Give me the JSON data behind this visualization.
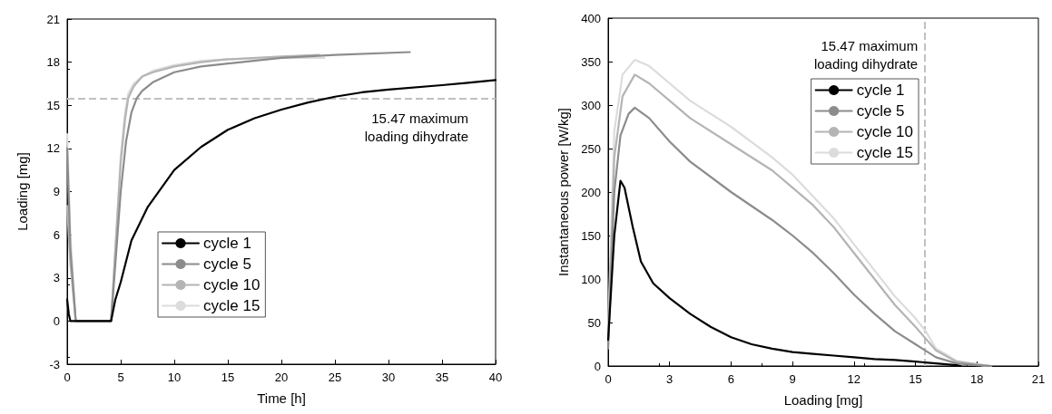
{
  "chart_data": [
    {
      "type": "line",
      "xlabel": "Time [h]",
      "ylabel": "Loading [mg]",
      "xlim": [
        0,
        40
      ],
      "ylim": [
        -3,
        21
      ],
      "xticks": [
        0,
        5,
        10,
        15,
        20,
        25,
        30,
        35,
        40
      ],
      "yticks": [
        -3,
        0,
        3,
        6,
        9,
        12,
        15,
        18,
        21
      ],
      "legend": "bottom",
      "ref_lines": [
        {
          "axis": "y",
          "value": 15.47,
          "color": "#c0c0c0",
          "line_style": "dashed",
          "label": "15.47 maximum\nloading dihydrate"
        }
      ],
      "series": [
        {
          "name": "cycle 1",
          "color": "#000000",
          "x": [
            0,
            0.15,
            0.3,
            1,
            2,
            3,
            4,
            4.1,
            4.5,
            5,
            6,
            7.5,
            10,
            12.5,
            15,
            17.5,
            20,
            22.5,
            25,
            27.5,
            30,
            35,
            40
          ],
          "values": [
            1.5,
            0.5,
            0,
            0,
            0,
            0,
            0,
            0,
            1.5,
            2.7,
            5.6,
            7.9,
            10.5,
            12.1,
            13.3,
            14.1,
            14.7,
            15.2,
            15.6,
            15.9,
            16.1,
            16.4,
            16.75
          ]
        },
        {
          "name": "cycle 5",
          "color": "#8c8c8c",
          "x": [
            0,
            0.3,
            0.8,
            2,
            4,
            4.1,
            4.5,
            5,
            5.5,
            6,
            6.5,
            7,
            8,
            10,
            12.5,
            15,
            20,
            25,
            32
          ],
          "values": [
            12,
            5,
            0,
            0,
            0,
            0,
            4,
            9,
            12.5,
            14.5,
            15.5,
            16,
            16.6,
            17.3,
            17.7,
            17.9,
            18.3,
            18.5,
            18.7
          ]
        },
        {
          "name": "cycle 10",
          "color": "#b4b4b4",
          "x": [
            0,
            0.3,
            0.8,
            2,
            4,
            4.1,
            4.5,
            5,
            5.4,
            5.7,
            6.2,
            7,
            8,
            10,
            12.5,
            15,
            20,
            23.5
          ],
          "values": [
            8,
            4,
            0,
            0,
            0,
            0,
            5,
            11,
            14,
            15.5,
            16.3,
            17,
            17.3,
            17.7,
            18,
            18.2,
            18.4,
            18.5
          ]
        },
        {
          "name": "cycle 15",
          "color": "#dcdcdc",
          "x": [
            0,
            0.3,
            0.8,
            2,
            4,
            4.1,
            4.5,
            5,
            5.4,
            5.7,
            6.2,
            7,
            8,
            10,
            12.5,
            15,
            20,
            24
          ],
          "values": [
            13,
            6,
            0,
            0,
            0,
            0,
            5,
            11.5,
            14.5,
            15.8,
            16.5,
            17,
            17.4,
            17.8,
            18.1,
            18.2,
            18.3,
            18.3
          ]
        }
      ]
    },
    {
      "type": "line",
      "xlabel": "Loading [mg]",
      "ylabel": "Instantaneous power [W/kg]",
      "xlim": [
        0,
        21
      ],
      "ylim": [
        0,
        400
      ],
      "xticks": [
        0,
        3,
        6,
        9,
        12,
        15,
        18,
        21
      ],
      "yticks": [
        0,
        50,
        100,
        150,
        200,
        250,
        300,
        350,
        400
      ],
      "legend": "top right",
      "ref_lines": [
        {
          "axis": "x",
          "value": 15.47,
          "color": "#c0c0c0",
          "line_style": "dashed",
          "label": "15.47 maximum\nloading dihydrate"
        }
      ],
      "series": [
        {
          "name": "cycle 1",
          "color": "#000000",
          "x": [
            0,
            0.3,
            0.6,
            0.8,
            1.2,
            1.6,
            2.2,
            3,
            4,
            5,
            6,
            7,
            8,
            9,
            10,
            11,
            12,
            13,
            14,
            15,
            16,
            17,
            17.2
          ],
          "values": [
            30,
            150,
            213,
            205,
            160,
            120,
            95,
            78,
            60,
            45,
            33,
            25,
            20,
            16,
            14,
            12,
            10,
            8,
            7,
            5,
            3,
            1,
            0
          ]
        },
        {
          "name": "cycle 5",
          "color": "#8c8c8c",
          "x": [
            0,
            0.3,
            0.6,
            1,
            1.3,
            2,
            3,
            4,
            6,
            8,
            9,
            10,
            11,
            12,
            13,
            14,
            15,
            16,
            17,
            18,
            18.7
          ],
          "values": [
            20,
            200,
            265,
            290,
            297,
            285,
            258,
            235,
            200,
            168,
            150,
            130,
            107,
            82,
            60,
            40,
            25,
            10,
            3,
            1,
            0
          ]
        },
        {
          "name": "cycle 10",
          "color": "#b4b4b4",
          "x": [
            0,
            0.3,
            0.7,
            1.3,
            2,
            3,
            4,
            6,
            8,
            9,
            10,
            11,
            12,
            13,
            14,
            15,
            16,
            17,
            18,
            18.7
          ],
          "values": [
            30,
            240,
            310,
            335,
            325,
            305,
            285,
            255,
            225,
            205,
            185,
            160,
            130,
            100,
            70,
            45,
            18,
            5,
            2,
            0
          ]
        },
        {
          "name": "cycle 15",
          "color": "#dcdcdc",
          "x": [
            0,
            0.3,
            0.7,
            1.3,
            2,
            3,
            4,
            6,
            8,
            9,
            10,
            11,
            12,
            13,
            14,
            15,
            15.5,
            16,
            17,
            18,
            18.4
          ],
          "values": [
            40,
            270,
            335,
            352,
            345,
            325,
            305,
            275,
            240,
            220,
            195,
            170,
            140,
            110,
            80,
            55,
            40,
            20,
            6,
            2,
            0
          ]
        }
      ]
    }
  ]
}
